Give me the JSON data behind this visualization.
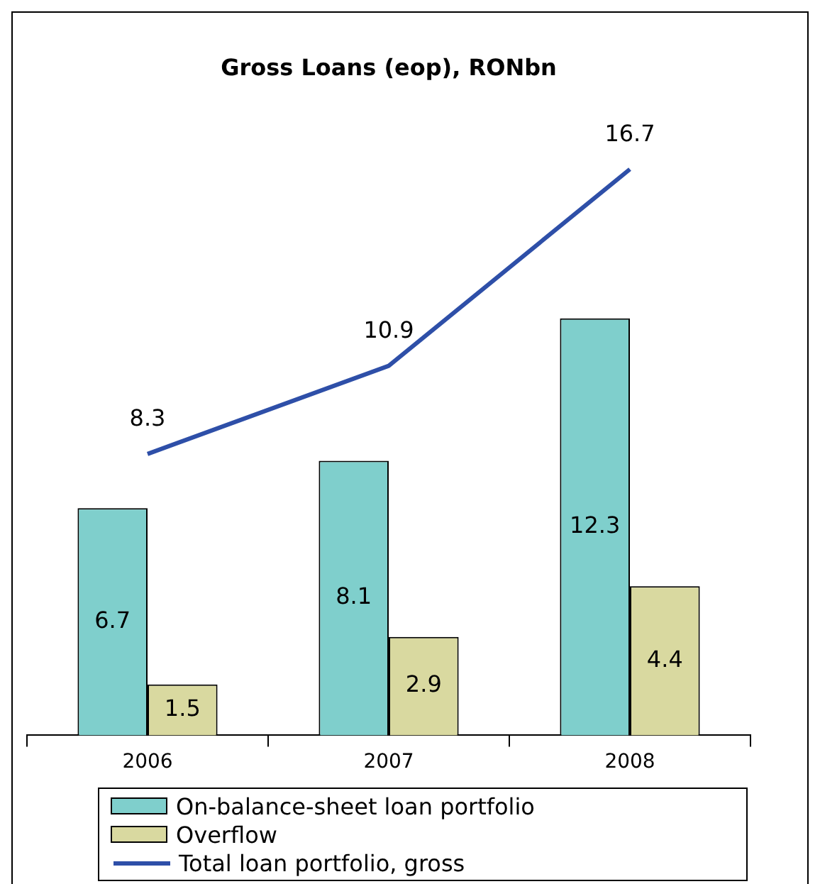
{
  "chart_data": {
    "type": "bar",
    "title": "Gross Loans (eop), RONbn",
    "categories": [
      "2006",
      "2007",
      "2008"
    ],
    "series": [
      {
        "name": "On-balance-sheet loan portfolio",
        "color": "#7fcfcc",
        "values": [
          6.7,
          8.1,
          12.3
        ]
      },
      {
        "name": "Overflow",
        "color": "#d9d9a0",
        "values": [
          1.5,
          2.9,
          4.4
        ]
      },
      {
        "name": "Total loan portfolio, gross",
        "type": "line",
        "color": "#2e4fa8",
        "values": [
          8.3,
          10.9,
          16.7
        ]
      }
    ],
    "data_labels": true,
    "legend": "bottom",
    "marker": "none",
    "grid": false
  }
}
